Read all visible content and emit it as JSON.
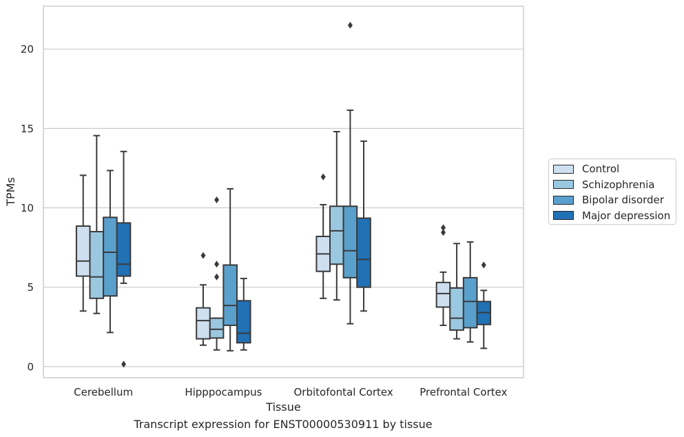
{
  "chart_data": {
    "type": "box",
    "title": "Transcript expression for ENST00000530911 by tissue",
    "xlabel": "Tissue",
    "ylabel": "TPMs",
    "ylim": [
      -0.7,
      22.7
    ],
    "yticks": [
      0,
      5,
      10,
      15,
      20
    ],
    "grid": "horizontal",
    "legend_position": "right",
    "categories": [
      "Cerebellum",
      "Hipppocampus",
      "Orbitofontal Cortex",
      "Prefrontal Cortex"
    ],
    "series": [
      {
        "name": "Control",
        "color": "#cedfef",
        "boxes": [
          {
            "whislo": 3.5,
            "q1": 5.7,
            "med": 6.65,
            "q3": 8.85,
            "whishi": 12.05,
            "fliers": []
          },
          {
            "whislo": 1.35,
            "q1": 1.75,
            "med": 2.9,
            "q3": 3.7,
            "whishi": 5.15,
            "fliers": [
              7.0
            ]
          },
          {
            "whislo": 4.3,
            "q1": 6.0,
            "med": 7.1,
            "q3": 8.2,
            "whishi": 10.2,
            "fliers": [
              11.95
            ]
          },
          {
            "whislo": 2.6,
            "q1": 3.75,
            "med": 4.6,
            "q3": 5.3,
            "whishi": 5.95,
            "fliers": [
              8.45,
              8.75
            ]
          }
        ]
      },
      {
        "name": "Schizophrenia",
        "color": "#9ac8e0",
        "boxes": [
          {
            "whislo": 3.35,
            "q1": 4.3,
            "med": 5.65,
            "q3": 8.5,
            "whishi": 14.55,
            "fliers": []
          },
          {
            "whislo": 1.05,
            "q1": 1.8,
            "med": 2.35,
            "q3": 3.05,
            "whishi": 3.05,
            "fliers": [
              5.65,
              6.45,
              10.5
            ]
          },
          {
            "whislo": 4.2,
            "q1": 6.45,
            "med": 8.55,
            "q3": 10.1,
            "whishi": 14.8,
            "fliers": []
          },
          {
            "whislo": 1.75,
            "q1": 2.3,
            "med": 3.05,
            "q3": 4.95,
            "whishi": 7.75,
            "fliers": []
          }
        ]
      },
      {
        "name": "Bipolar disorder",
        "color": "#5aa0cd",
        "boxes": [
          {
            "whislo": 2.15,
            "q1": 4.45,
            "med": 7.2,
            "q3": 9.4,
            "whishi": 12.35,
            "fliers": []
          },
          {
            "whislo": 1.0,
            "q1": 2.6,
            "med": 3.85,
            "q3": 6.4,
            "whishi": 11.2,
            "fliers": []
          },
          {
            "whislo": 2.7,
            "q1": 5.6,
            "med": 7.3,
            "q3": 10.1,
            "whishi": 16.15,
            "fliers": [
              21.5
            ]
          },
          {
            "whislo": 1.55,
            "q1": 2.45,
            "med": 4.1,
            "q3": 5.6,
            "whishi": 7.85,
            "fliers": []
          }
        ]
      },
      {
        "name": "Major depression",
        "color": "#2171b5",
        "boxes": [
          {
            "whislo": 5.25,
            "q1": 5.7,
            "med": 6.45,
            "q3": 9.05,
            "whishi": 13.55,
            "fliers": [
              0.15
            ]
          },
          {
            "whislo": 1.05,
            "q1": 1.5,
            "med": 2.1,
            "q3": 4.15,
            "whishi": 5.55,
            "fliers": []
          },
          {
            "whislo": 3.5,
            "q1": 5.0,
            "med": 6.75,
            "q3": 9.35,
            "whishi": 14.2,
            "fliers": []
          },
          {
            "whislo": 1.15,
            "q1": 2.65,
            "med": 3.4,
            "q3": 4.1,
            "whishi": 4.8,
            "fliers": [
              6.4
            ]
          }
        ]
      }
    ]
  }
}
